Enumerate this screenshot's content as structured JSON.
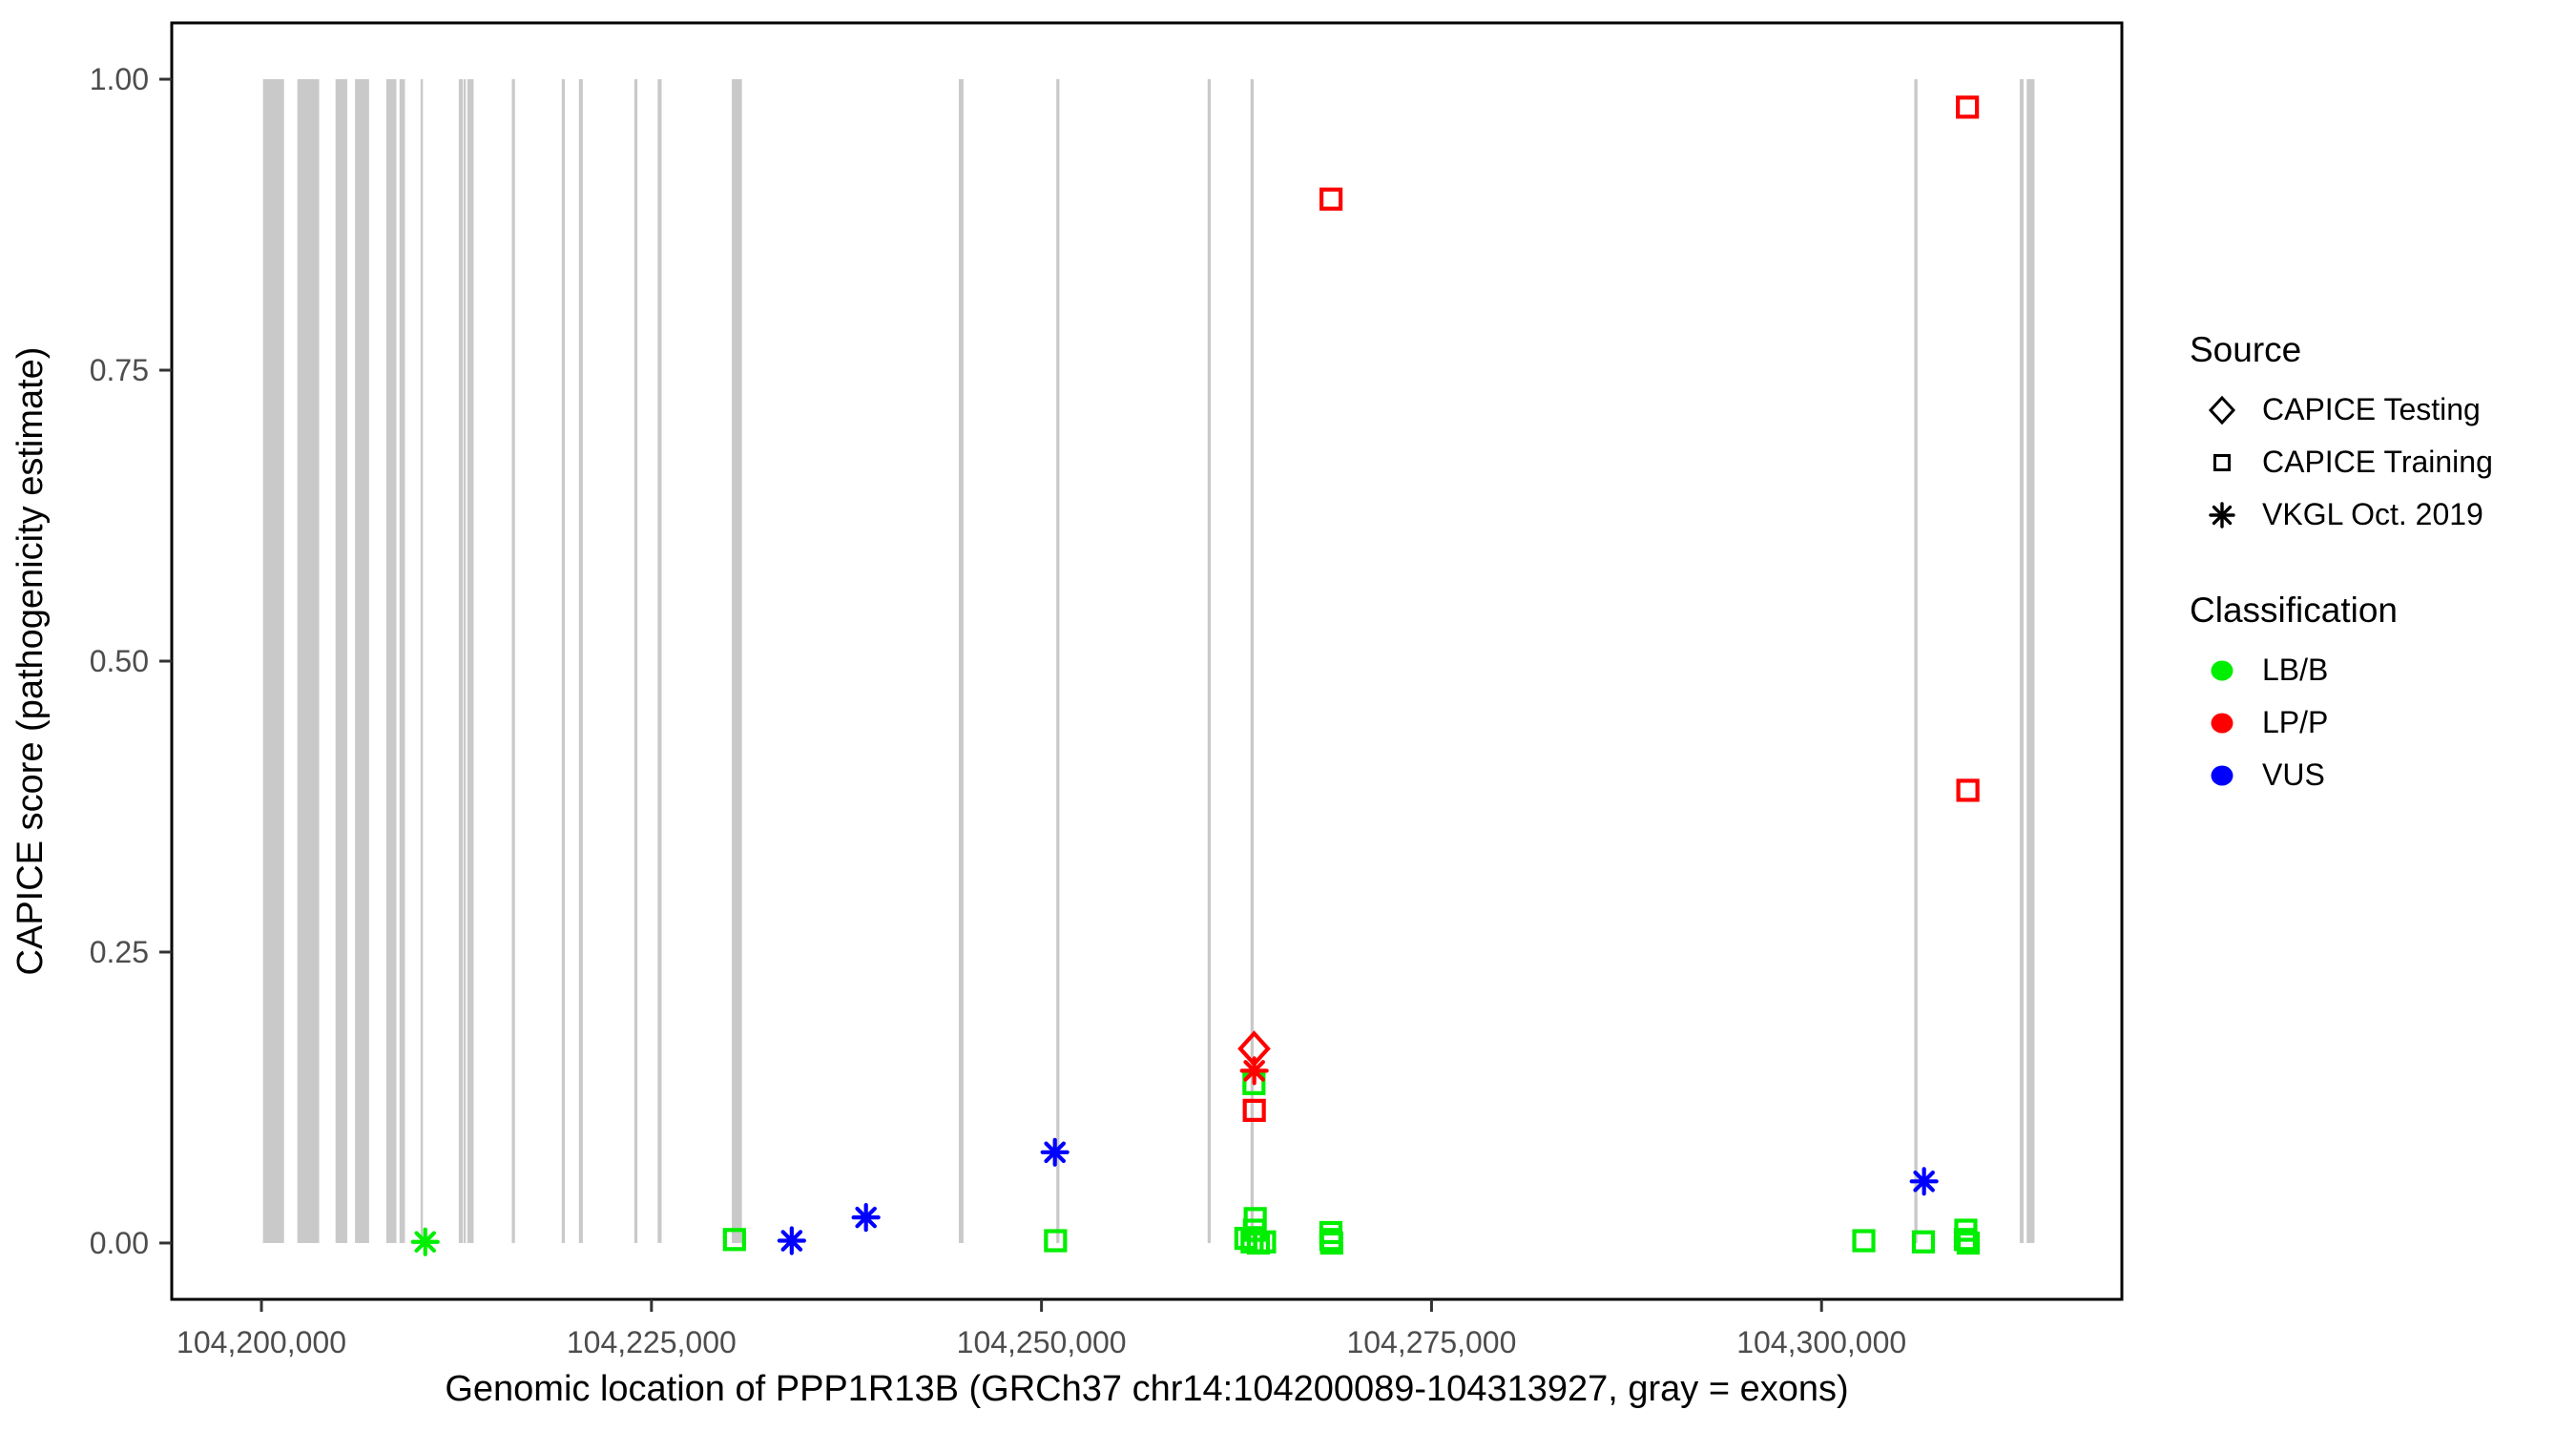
{
  "chart_data": {
    "type": "scatter",
    "title": "",
    "xlabel": "Genomic location of PPP1R13B (GRCh37 chr14:104200089-104313927, gray = exons)",
    "ylabel": "CAPICE score (pathogenicity estimate)",
    "x_domain": [
      104194250,
      104319250
    ],
    "y_domain": [
      -0.0484,
      1.0484
    ],
    "x_ticks": [
      {
        "value": 104200000,
        "label": "104,200,000"
      },
      {
        "value": 104225000,
        "label": "104,225,000"
      },
      {
        "value": 104250000,
        "label": "104,250,000"
      },
      {
        "value": 104275000,
        "label": "104,275,000"
      },
      {
        "value": 104300000,
        "label": "104,300,000"
      }
    ],
    "y_ticks": [
      {
        "value": 0.0,
        "label": "0.00"
      },
      {
        "value": 0.25,
        "label": "0.25"
      },
      {
        "value": 0.5,
        "label": "0.50"
      },
      {
        "value": 0.75,
        "label": "0.75"
      },
      {
        "value": 1.0,
        "label": "1.00"
      }
    ],
    "grid": false,
    "legend_position": "right",
    "exon_color": "#c9c9c9",
    "exons": [
      [
        104200100,
        104201450
      ],
      [
        104202300,
        104203700
      ],
      [
        104204750,
        104205500
      ],
      [
        104206000,
        104206900
      ],
      [
        104208000,
        104208650
      ],
      [
        104208850,
        104209200
      ],
      [
        104210200,
        104210350
      ],
      [
        104212650,
        104212900
      ],
      [
        104212950,
        104213100
      ],
      [
        104213200,
        104213600
      ],
      [
        104216050,
        104216250
      ],
      [
        104219250,
        104219450
      ],
      [
        104220350,
        104220600
      ],
      [
        104223900,
        104224100
      ],
      [
        104225400,
        104225650
      ],
      [
        104230150,
        104230800
      ],
      [
        104244700,
        104245000
      ],
      [
        104250950,
        104251150
      ],
      [
        104260650,
        104260850
      ],
      [
        104263400,
        104263600
      ],
      [
        104305950,
        104306150
      ],
      [
        104312700,
        104312950
      ],
      [
        104313150,
        104313650
      ]
    ],
    "classification_colors": {
      "LB/B": "#00ee00",
      "LP/P": "#ff0000",
      "VUS": "#0000ff"
    },
    "series": [
      {
        "name": "CAPICE Testing",
        "shape": "diamond",
        "points": [
          {
            "pos": 104263630,
            "score": 0.167,
            "classification": "LP/P"
          }
        ]
      },
      {
        "name": "CAPICE Training",
        "shape": "square",
        "points": [
          {
            "pos": 104230320,
            "score": 0.003,
            "classification": "LB/B"
          },
          {
            "pos": 104250900,
            "score": 0.002,
            "classification": "LB/B"
          },
          {
            "pos": 104263620,
            "score": 0.137,
            "classification": "LB/B"
          },
          {
            "pos": 104263640,
            "score": 0.114,
            "classification": "LP/P"
          },
          {
            "pos": 104263700,
            "score": 0.021,
            "classification": "LB/B"
          },
          {
            "pos": 104263650,
            "score": 0.011,
            "classification": "LB/B"
          },
          {
            "pos": 104263100,
            "score": 0.004,
            "classification": "LB/B"
          },
          {
            "pos": 104263500,
            "score": 0.001,
            "classification": "LB/B"
          },
          {
            "pos": 104263900,
            "score": 0.0,
            "classification": "LB/B"
          },
          {
            "pos": 104264300,
            "score": 0.001,
            "classification": "LB/B"
          },
          {
            "pos": 104268560,
            "score": 0.897,
            "classification": "LP/P"
          },
          {
            "pos": 104268550,
            "score": 0.009,
            "classification": "LB/B"
          },
          {
            "pos": 104268550,
            "score": 0.003,
            "classification": "LB/B"
          },
          {
            "pos": 104268600,
            "score": 0.0,
            "classification": "LB/B"
          },
          {
            "pos": 104302710,
            "score": 0.002,
            "classification": "LB/B"
          },
          {
            "pos": 104306530,
            "score": 0.001,
            "classification": "LB/B"
          },
          {
            "pos": 104309350,
            "score": 0.976,
            "classification": "LP/P"
          },
          {
            "pos": 104309380,
            "score": 0.389,
            "classification": "LP/P"
          },
          {
            "pos": 104309250,
            "score": 0.011,
            "classification": "LB/B"
          },
          {
            "pos": 104309220,
            "score": 0.003,
            "classification": "LB/B"
          },
          {
            "pos": 104309400,
            "score": 0.0,
            "classification": "LB/B"
          }
        ]
      },
      {
        "name": "VKGL Oct. 2019",
        "shape": "asterisk",
        "points": [
          {
            "pos": 104210500,
            "score": 0.001,
            "classification": "LB/B"
          },
          {
            "pos": 104233990,
            "score": 0.002,
            "classification": "VUS"
          },
          {
            "pos": 104238750,
            "score": 0.022,
            "classification": "VUS"
          },
          {
            "pos": 104250860,
            "score": 0.078,
            "classification": "VUS"
          },
          {
            "pos": 104263640,
            "score": 0.148,
            "classification": "LP/P"
          },
          {
            "pos": 104306570,
            "score": 0.053,
            "classification": "VUS"
          }
        ]
      }
    ]
  },
  "legend": {
    "source": {
      "title": "Source",
      "items": [
        {
          "label": "CAPICE Testing",
          "shape": "diamond"
        },
        {
          "label": "CAPICE Training",
          "shape": "square"
        },
        {
          "label": "VKGL Oct. 2019",
          "shape": "asterisk"
        }
      ]
    },
    "classification": {
      "title": "Classification",
      "items": [
        {
          "label": "LB/B",
          "color": "#00ee00"
        },
        {
          "label": "LP/P",
          "color": "#ff0000"
        },
        {
          "label": "VUS",
          "color": "#0000ff"
        }
      ]
    }
  }
}
